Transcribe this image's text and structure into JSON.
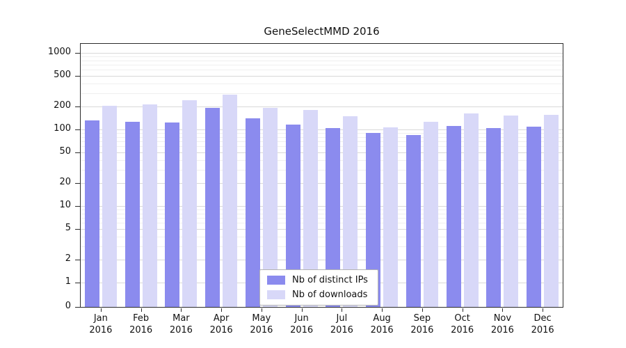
{
  "chart_data": {
    "type": "bar",
    "title": "GeneSelectMMD 2016",
    "xlabel": "",
    "ylabel": "",
    "categories": [
      "Jan 2016",
      "Feb 2016",
      "Mar 2016",
      "Apr 2016",
      "May 2016",
      "Jun 2016",
      "Jul 2016",
      "Aug 2016",
      "Sep 2016",
      "Oct 2016",
      "Nov 2016",
      "Dec 2016"
    ],
    "series": [
      {
        "name": "Nb of distinct IPs",
        "color": "#8b8bee",
        "values": [
          130,
          127,
          123,
          192,
          140,
          117,
          105,
          90,
          85,
          112,
          104,
          108
        ]
      },
      {
        "name": "Nb of downloads",
        "color": "#d8d8f8",
        "values": [
          202,
          212,
          243,
          283,
          192,
          180,
          150,
          106,
          126,
          163,
          152,
          155
        ]
      }
    ],
    "yscale": "log (1-2-5 ticks, 0 at baseline)",
    "yticks": [
      0,
      1,
      2,
      5,
      10,
      20,
      50,
      100,
      200,
      500,
      1000
    ],
    "ylim": [
      0,
      1300
    ],
    "grid": "horizontal major and minor gridlines, light gray",
    "legend_position": "bottom-center inside plot"
  }
}
